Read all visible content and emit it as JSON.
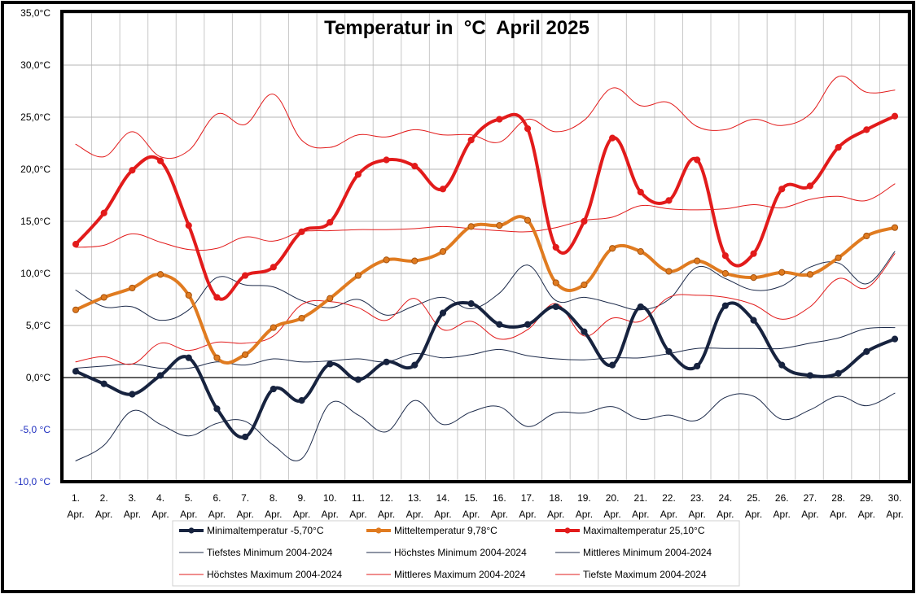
{
  "chart_data": {
    "type": "line",
    "title": "Temperatur in  °C  April 2025",
    "ylim": [
      -10,
      35
    ],
    "ytick_values": [
      35,
      30,
      25,
      20,
      15,
      10,
      5,
      0,
      -5,
      -10
    ],
    "ytick_labels": [
      "35,0°C",
      "30,0°C",
      "25,0°C",
      "20,0°C",
      "15,0°C",
      "10,0°C",
      "5,0°C",
      "0,0°C",
      "-5,0 °C",
      "-10,0 °C"
    ],
    "negative_label_color": "#1f2fbf",
    "grid": true,
    "x_day_labels": [
      "1.",
      "2.",
      "3.",
      "4.",
      "5.",
      "6.",
      "7.",
      "8.",
      "9.",
      "10.",
      "11.",
      "12.",
      "13.",
      "14.",
      "15.",
      "16.",
      "17.",
      "18.",
      "19.",
      "20.",
      "21.",
      "22.",
      "23.",
      "24.",
      "25.",
      "26.",
      "27.",
      "28.",
      "29.",
      "30."
    ],
    "x_month_label": "Apr.",
    "series": [
      {
        "name": "Minimaltemperatur",
        "legend_value": "-5,70°C",
        "color": "#17233f",
        "width": 4,
        "markers": true,
        "values": [
          0.6,
          -0.6,
          -1.6,
          0.2,
          1.9,
          -3.0,
          -5.7,
          -1.1,
          -2.2,
          1.3,
          -0.2,
          1.5,
          1.2,
          6.2,
          7.1,
          5.1,
          5.1,
          6.8,
          4.4,
          1.2,
          6.8,
          2.5,
          1.1,
          6.9,
          5.5,
          1.2,
          0.2,
          0.4,
          2.5,
          3.7
        ]
      },
      {
        "name": "Mitteltemperatur",
        "legend_value": "9,78°C",
        "color": "#e07b20",
        "width": 4,
        "markers": true,
        "values": [
          6.5,
          7.7,
          8.6,
          9.9,
          7.9,
          1.9,
          2.2,
          4.8,
          5.7,
          7.6,
          9.8,
          11.3,
          11.2,
          12.1,
          14.5,
          14.6,
          15.1,
          9.1,
          8.9,
          12.4,
          12.1,
          10.2,
          11.2,
          10.0,
          9.6,
          10.1,
          9.9,
          11.5,
          13.6,
          14.4
        ]
      },
      {
        "name": "Maximaltemperatur",
        "legend_value": "25,10°C",
        "color": "#e21b1b",
        "width": 4,
        "markers": true,
        "values": [
          12.8,
          15.8,
          19.9,
          20.8,
          14.6,
          7.7,
          9.8,
          10.6,
          14.0,
          14.9,
          19.5,
          20.9,
          20.3,
          18.1,
          22.8,
          24.8,
          23.9,
          12.5,
          15.0,
          23.0,
          17.8,
          17.0,
          20.9,
          11.7,
          11.9,
          18.1,
          18.4,
          22.1,
          23.8,
          25.1
        ]
      },
      {
        "name": "Tiefstes Minimum 2004-2024",
        "color": "#1c2a4a",
        "width": 1,
        "markers": false,
        "values": [
          -8.0,
          -6.5,
          -3.2,
          -4.5,
          -5.6,
          -4.4,
          -4.2,
          -6.5,
          -7.8,
          -2.5,
          -3.6,
          -5.2,
          -2.2,
          -4.5,
          -3.3,
          -2.8,
          -4.7,
          -3.4,
          -3.4,
          -2.8,
          -4.0,
          -3.6,
          -4.1,
          -1.9,
          -1.8,
          -4.0,
          -3.1,
          -1.8,
          -2.7,
          -1.5
        ]
      },
      {
        "name": "Höchstes Minimum 2004-2024",
        "color": "#1c2a4a",
        "width": 1,
        "markers": false,
        "values": [
          8.4,
          6.8,
          6.8,
          5.5,
          6.5,
          9.6,
          8.9,
          8.7,
          7.4,
          6.7,
          7.5,
          6.0,
          6.9,
          7.7,
          6.6,
          8.1,
          10.8,
          7.4,
          7.7,
          7.1,
          6.5,
          7.5,
          10.6,
          9.5,
          8.4,
          8.8,
          10.6,
          11.0,
          9.0,
          12.1
        ]
      },
      {
        "name": "Mittleres Minimum 2004-2024",
        "color": "#1c2a4a",
        "width": 1,
        "markers": false,
        "values": [
          0.9,
          1.1,
          1.3,
          0.9,
          0.9,
          1.5,
          1.2,
          1.8,
          1.5,
          1.6,
          1.8,
          1.5,
          2.3,
          1.9,
          2.2,
          2.7,
          2.1,
          1.8,
          1.7,
          1.9,
          1.9,
          2.3,
          2.8,
          2.8,
          2.8,
          2.8,
          3.3,
          3.8,
          4.7,
          4.8
        ]
      },
      {
        "name": "Höchstes Maximum 2004-2024",
        "color": "#e21b1b",
        "width": 1,
        "markers": false,
        "values": [
          22.4,
          21.2,
          23.6,
          21.2,
          21.8,
          25.3,
          24.3,
          27.2,
          22.8,
          22.1,
          23.3,
          23.1,
          23.8,
          23.3,
          23.3,
          22.6,
          24.8,
          23.6,
          24.7,
          27.8,
          26.1,
          26.4,
          24.1,
          23.8,
          24.8,
          24.2,
          25.3,
          28.9,
          27.4,
          27.6
        ]
      },
      {
        "name": "Mittleres Maximum 2004-2024",
        "color": "#e21b1b",
        "width": 1,
        "markers": false,
        "values": [
          12.5,
          12.7,
          13.8,
          13.0,
          12.3,
          12.4,
          13.5,
          13.1,
          14.0,
          14.1,
          14.2,
          14.2,
          14.3,
          14.5,
          14.3,
          14.1,
          14.0,
          14.4,
          15.1,
          15.4,
          16.5,
          16.2,
          16.1,
          16.2,
          16.6,
          16.3,
          17.1,
          17.4,
          17.0,
          18.6
        ]
      },
      {
        "name": "Tiefste Maximum 2004-2024",
        "color": "#e21b1b",
        "width": 1,
        "markers": false,
        "values": [
          1.5,
          2.0,
          1.3,
          3.3,
          2.6,
          3.4,
          3.3,
          4.0,
          7.0,
          7.3,
          6.7,
          5.5,
          7.6,
          4.6,
          5.4,
          3.7,
          4.6,
          7.1,
          4.0,
          5.7,
          5.4,
          7.7,
          7.9,
          7.7,
          7.0,
          5.6,
          6.8,
          9.5,
          8.6,
          11.9
        ]
      }
    ]
  }
}
